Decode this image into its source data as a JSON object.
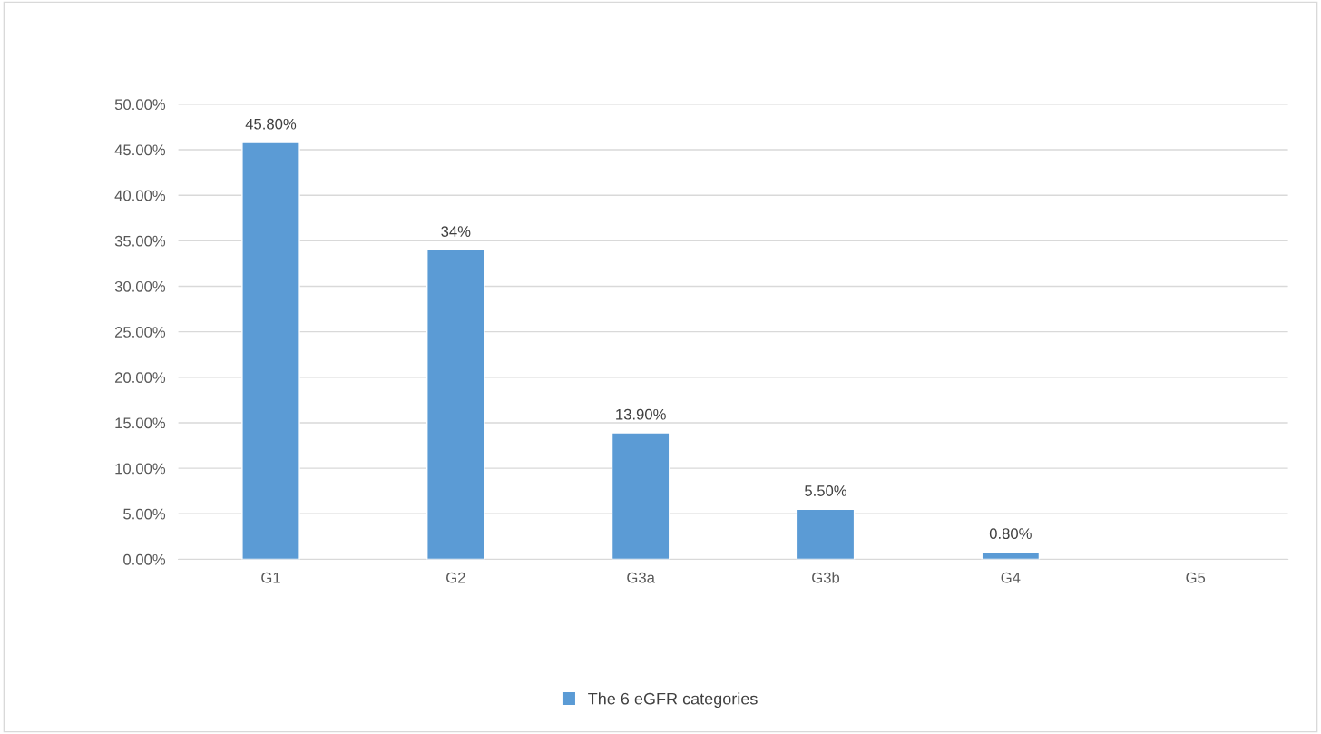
{
  "chart_data": {
    "type": "bar",
    "categories": [
      "G1",
      "G2",
      "G3a",
      "G3b",
      "G4",
      "G5"
    ],
    "series": [
      {
        "name": "The 6 eGFR categories",
        "color": "#5b9bd5",
        "values": [
          45.8,
          34,
          13.9,
          5.5,
          0.8,
          null
        ],
        "value_labels": [
          "45.80%",
          "34%",
          "13.90%",
          "5.50%",
          "0.80%",
          null
        ]
      }
    ],
    "ylim": [
      0,
      50
    ],
    "yticks": [
      {
        "value": 0,
        "label": "0.00%"
      },
      {
        "value": 5,
        "label": "5.00%"
      },
      {
        "value": 10,
        "label": "10.00%"
      },
      {
        "value": 15,
        "label": "15.00%"
      },
      {
        "value": 20,
        "label": "20.00%"
      },
      {
        "value": 25,
        "label": "25.00%"
      },
      {
        "value": 30,
        "label": "30.00%"
      },
      {
        "value": 35,
        "label": "35.00%"
      },
      {
        "value": 40,
        "label": "40.00%"
      },
      {
        "value": 45,
        "label": "45.00%"
      },
      {
        "value": 50,
        "label": "50.00%"
      }
    ],
    "grid": "y",
    "legend": "bottom"
  }
}
